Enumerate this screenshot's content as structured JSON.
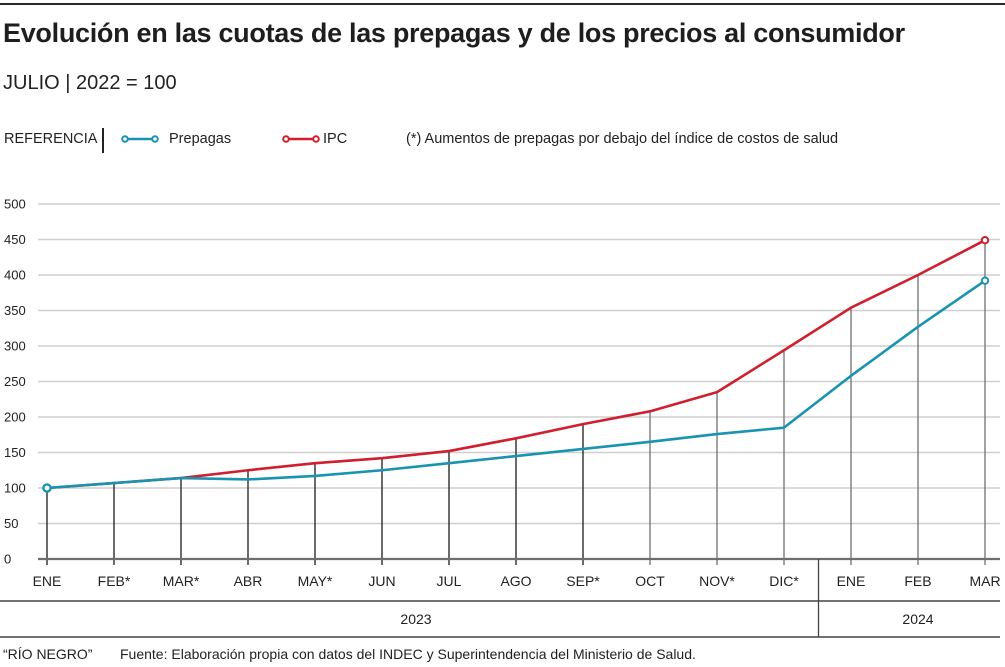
{
  "header": {
    "title": "Evolución en las cuotas de las prepagas y de los precios al consumidor",
    "subtitle": "JULIO | 2022 = 100"
  },
  "legend": {
    "label": "REFERENCIA",
    "items": [
      {
        "name": "Prepagas",
        "color": "#1a93b0"
      },
      {
        "name": "IPC",
        "color": "#d01f2e"
      }
    ],
    "note": "(*) Aumentos de prepagas por debajo del índice de costos de salud"
  },
  "footer": {
    "publisher": "“RÍO NEGRO”",
    "source": "Fuente: Elaboración propia con datos del INDEC y Superintendencia del Ministerio de Salud."
  },
  "chart_data": {
    "type": "line",
    "title": "Evolución en las cuotas de las prepagas y de los precios al consumidor",
    "subtitle": "JULIO | 2022 = 100",
    "xlabel": "",
    "ylabel": "",
    "ylim": [
      0,
      500
    ],
    "yticks": [
      0,
      50,
      100,
      150,
      200,
      250,
      300,
      350,
      400,
      450,
      500
    ],
    "grid": true,
    "legend_position": "top-left",
    "categories": [
      "ENE",
      "FEB*",
      "MAR*",
      "ABR",
      "MAY*",
      "JUN",
      "JUL",
      "AGO",
      "SEP*",
      "OCT",
      "NOV*",
      "DIC*",
      "ENE",
      "FEB",
      "MAR"
    ],
    "year_groups": [
      {
        "label": "2023",
        "count": 12
      },
      {
        "label": "2024",
        "count": 3
      }
    ],
    "series": [
      {
        "name": "Prepagas",
        "color": "#1a93b0",
        "values": [
          100,
          107,
          114,
          112,
          117,
          125,
          135,
          145,
          155,
          165,
          176,
          185,
          258,
          327,
          392
        ]
      },
      {
        "name": "IPC",
        "color": "#d01f2e",
        "values": [
          100,
          107,
          114,
          125,
          135,
          142,
          152,
          170,
          190,
          208,
          235,
          294,
          354,
          400,
          449
        ]
      }
    ],
    "annotations": [
      "(*) Aumentos de prepagas por debajo del índice de costos de salud"
    ]
  }
}
